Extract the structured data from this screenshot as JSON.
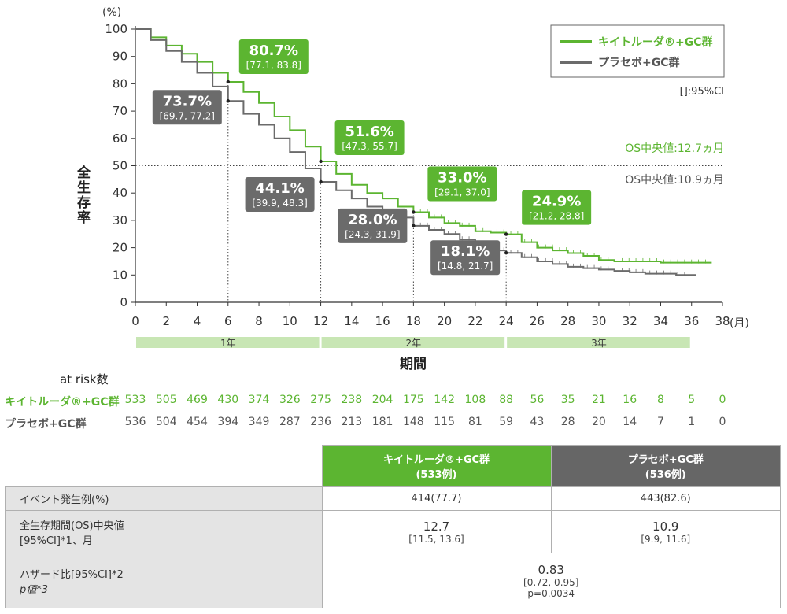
{
  "chart_data": {
    "type": "line",
    "y_unit": "(%)",
    "ylabel": "全生存率",
    "xlabel": "期間",
    "x_unit": "(月)",
    "xlim": [
      0,
      38
    ],
    "ylim": [
      0,
      100
    ],
    "x_ticks": [
      0,
      2,
      4,
      6,
      8,
      10,
      12,
      14,
      16,
      18,
      20,
      22,
      24,
      26,
      28,
      30,
      32,
      34,
      36,
      38
    ],
    "y_ticks": [
      0,
      10,
      20,
      30,
      40,
      50,
      60,
      70,
      80,
      90,
      100
    ],
    "colors": {
      "green": "#5cb531",
      "gray": "#6b6b6b"
    },
    "legend": {
      "position": "top-right",
      "ci_note": "[]:95%CI"
    },
    "series": [
      {
        "name": "キイトルーダ®+GC群",
        "color": "#5cb531",
        "points": [
          [
            0,
            100
          ],
          [
            1,
            97
          ],
          [
            2,
            94
          ],
          [
            3,
            91
          ],
          [
            4,
            88
          ],
          [
            5,
            84
          ],
          [
            6,
            80.7
          ],
          [
            7,
            77
          ],
          [
            8,
            73
          ],
          [
            9,
            68
          ],
          [
            10,
            63
          ],
          [
            11,
            57
          ],
          [
            12,
            51.6
          ],
          [
            13,
            47
          ],
          [
            14,
            43
          ],
          [
            15,
            40
          ],
          [
            16,
            38
          ],
          [
            17,
            35
          ],
          [
            18,
            33.0
          ],
          [
            19,
            31
          ],
          [
            20,
            29
          ],
          [
            21,
            28
          ],
          [
            22,
            26
          ],
          [
            23,
            25.5
          ],
          [
            24,
            24.9
          ],
          [
            25,
            22
          ],
          [
            26,
            20
          ],
          [
            27,
            19
          ],
          [
            28,
            18
          ],
          [
            29,
            17
          ],
          [
            30,
            15.5
          ],
          [
            31,
            15
          ],
          [
            32,
            15
          ],
          [
            33,
            15
          ],
          [
            34,
            14.5
          ],
          [
            35,
            14.5
          ],
          [
            36,
            14.5
          ],
          [
            37,
            14.5
          ]
        ]
      },
      {
        "name": "プラセボ+GC群",
        "color": "#6b6b6b",
        "points": [
          [
            0,
            100
          ],
          [
            1,
            96
          ],
          [
            2,
            92
          ],
          [
            3,
            88
          ],
          [
            4,
            84
          ],
          [
            5,
            79
          ],
          [
            6,
            73.7
          ],
          [
            7,
            69
          ],
          [
            8,
            65
          ],
          [
            9,
            60
          ],
          [
            10,
            55
          ],
          [
            11,
            49
          ],
          [
            12,
            44.1
          ],
          [
            13,
            41
          ],
          [
            14,
            38
          ],
          [
            15,
            35
          ],
          [
            16,
            33
          ],
          [
            17,
            31
          ],
          [
            18,
            28.0
          ],
          [
            19,
            26.5
          ],
          [
            20,
            25
          ],
          [
            21,
            23
          ],
          [
            22,
            21
          ],
          [
            23,
            19
          ],
          [
            24,
            18.1
          ],
          [
            25,
            16.5
          ],
          [
            26,
            15
          ],
          [
            27,
            14
          ],
          [
            28,
            13
          ],
          [
            29,
            12.5
          ],
          [
            30,
            12
          ],
          [
            31,
            11.5
          ],
          [
            32,
            11
          ],
          [
            33,
            10.5
          ],
          [
            34,
            10.5
          ],
          [
            35,
            10
          ],
          [
            36,
            10
          ]
        ]
      }
    ],
    "callouts": [
      {
        "series": 0,
        "x": 6,
        "y": 80.7,
        "value": "80.7%",
        "ci": "[77.1, 83.8]"
      },
      {
        "series": 1,
        "x": 6,
        "y": 73.7,
        "value": "73.7%",
        "ci": "[69.7, 77.2]"
      },
      {
        "series": 0,
        "x": 12,
        "y": 51.6,
        "value": "51.6%",
        "ci": "[47.3, 55.7]"
      },
      {
        "series": 1,
        "x": 12,
        "y": 44.1,
        "value": "44.1%",
        "ci": "[39.9, 48.3]"
      },
      {
        "series": 0,
        "x": 18,
        "y": 33.0,
        "value": "33.0%",
        "ci": "[29.1, 37.0]"
      },
      {
        "series": 1,
        "x": 18,
        "y": 28.0,
        "value": "28.0%",
        "ci": "[24.3, 31.9]"
      },
      {
        "series": 0,
        "x": 24,
        "y": 24.9,
        "value": "24.9%",
        "ci": "[21.2, 28.8]"
      },
      {
        "series": 1,
        "x": 24,
        "y": 18.1,
        "value": "18.1%",
        "ci": "[14.8, 21.7]"
      }
    ],
    "median_notes": [
      {
        "text": "OS中央値:12.7ヵ月",
        "color": "#5cb531"
      },
      {
        "text": "OS中央値:10.9ヵ月",
        "color": "#555555"
      }
    ],
    "year_bands": [
      {
        "label": "1年",
        "from": 0,
        "to": 12
      },
      {
        "label": "2年",
        "from": 12,
        "to": 24
      },
      {
        "label": "3年",
        "from": 24,
        "to": 36
      }
    ]
  },
  "at_risk": {
    "title": "at risk数",
    "months": [
      0,
      2,
      4,
      6,
      8,
      10,
      12,
      14,
      16,
      18,
      20,
      22,
      24,
      26,
      28,
      30,
      32,
      34,
      36,
      38
    ],
    "rows": [
      {
        "label": "キイトルーダ®+GC群",
        "color": "green",
        "values": [
          "533",
          "505",
          "469",
          "430",
          "374",
          "326",
          "275",
          "238",
          "204",
          "175",
          "142",
          "108",
          "88",
          "56",
          "35",
          "21",
          "16",
          "8",
          "5",
          "0"
        ]
      },
      {
        "label": "プラセボ+GC群",
        "color": "gray",
        "values": [
          "536",
          "504",
          "454",
          "394",
          "349",
          "287",
          "236",
          "213",
          "181",
          "148",
          "115",
          "81",
          "59",
          "43",
          "28",
          "20",
          "14",
          "7",
          "1",
          "0"
        ]
      }
    ]
  },
  "table": {
    "head_green": {
      "name": "キイトルーダ®+GC群",
      "n": "(533例)"
    },
    "head_gray": {
      "name": "プラセボ+GC群",
      "n": "(536例)"
    },
    "rows": {
      "events": {
        "label": "イベント発生例(%)",
        "green": "414(77.7)",
        "gray": "443(82.6)"
      },
      "median": {
        "label1": "全生存期間(OS)中央値",
        "label2": "[95%CI]*1、月",
        "green": "12.7",
        "green_ci": "[11.5, 13.6]",
        "gray": "10.9",
        "gray_ci": "[9.9, 11.6]"
      },
      "hazard": {
        "label1": "ハザード比[95%CI]*2",
        "label2": "p値*3",
        "hr": "0.83",
        "hr_ci": "[0.72, 0.95]",
        "p": "p=0.0034"
      }
    }
  }
}
